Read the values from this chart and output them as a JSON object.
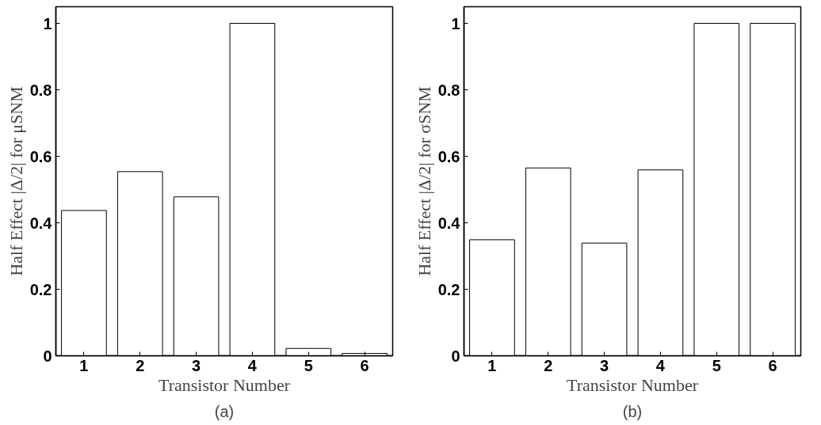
{
  "chart_data": [
    {
      "type": "bar",
      "categories": [
        "1",
        "2",
        "3",
        "4",
        "5",
        "6"
      ],
      "values": [
        0.437,
        0.554,
        0.478,
        1.0,
        0.022,
        0.007
      ],
      "color": "#ffffff",
      "xlabel": "Transistor Number",
      "ylabel": "Half Effect |Δ/2| for μSNM",
      "ylim": [
        0,
        1.05
      ],
      "yticks": [
        0,
        0.2,
        0.4,
        0.6,
        0.8,
        1
      ],
      "grid": false,
      "annotations": [
        "(a)"
      ]
    },
    {
      "type": "bar",
      "categories": [
        "1",
        "2",
        "3",
        "4",
        "5",
        "6"
      ],
      "values": [
        0.349,
        0.565,
        0.339,
        0.559,
        1.0,
        1.0
      ],
      "color": "#ffffff",
      "xlabel": "Transistor Number",
      "ylabel": "Half Effect |Δ/2| for σSNM",
      "ylim": [
        0,
        1.05
      ],
      "yticks": [
        0,
        0.2,
        0.4,
        0.6,
        0.8,
        1
      ],
      "grid": false,
      "annotations": [
        "(b)"
      ]
    }
  ]
}
